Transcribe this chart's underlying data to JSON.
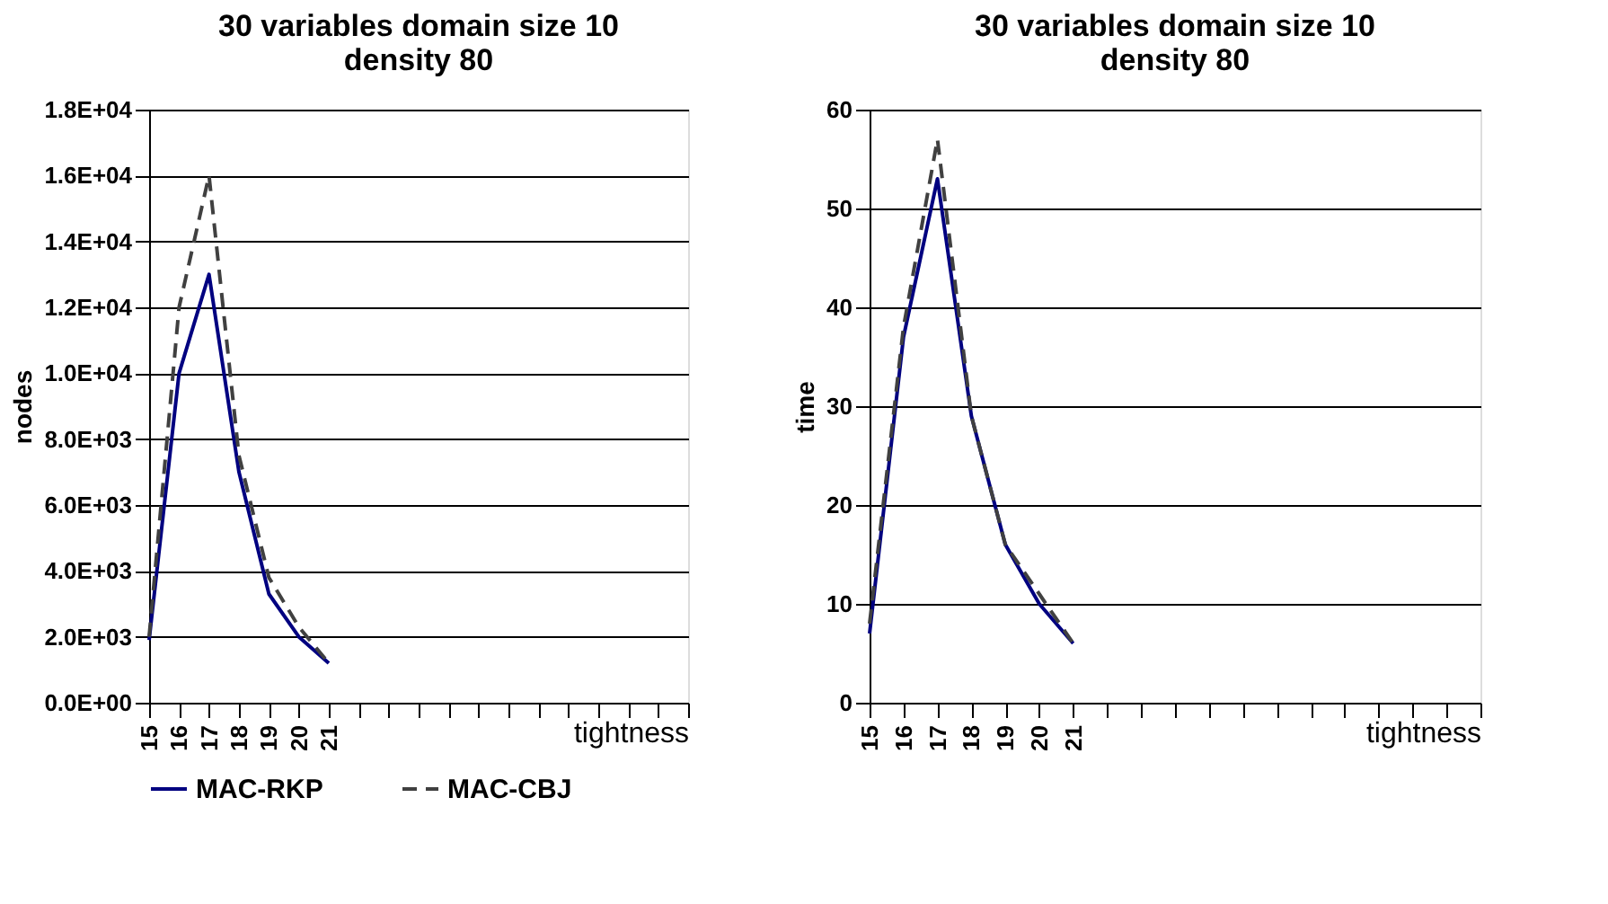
{
  "chart_data": [
    {
      "type": "line",
      "title": "30 variables    domain size 10\ndensity 80",
      "xlabel": "tightness",
      "ylabel": "nodes",
      "categories": [
        "15",
        "16",
        "17",
        "18",
        "19",
        "20",
        "21",
        null,
        null,
        null,
        null,
        null,
        null,
        null,
        null,
        null,
        null,
        null,
        null
      ],
      "series": [
        {
          "name": "MAC-RKP",
          "color": "#000080",
          "line_style": "solid",
          "values": [
            1900,
            10000,
            13000,
            7000,
            3300,
            2000,
            1200,
            null,
            null,
            null,
            null,
            null,
            null,
            null,
            null,
            null,
            null,
            null,
            null
          ]
        },
        {
          "name": "MAC-CBJ",
          "color": "#404040",
          "line_style": "dashed",
          "values": [
            2000,
            12000,
            16000,
            7500,
            3800,
            2300,
            1200,
            null,
            null,
            null,
            null,
            null,
            null,
            null,
            null,
            null,
            null,
            null,
            null
          ]
        }
      ],
      "ylim": [
        0,
        18000
      ],
      "yticks": [
        {
          "value": 0,
          "label": "0.0E+00"
        },
        {
          "value": 2000,
          "label": "2.0E+03"
        },
        {
          "value": 4000,
          "label": "4.0E+03"
        },
        {
          "value": 6000,
          "label": "6.0E+03"
        },
        {
          "value": 8000,
          "label": "8.0E+03"
        },
        {
          "value": 10000,
          "label": "1.0E+04"
        },
        {
          "value": 12000,
          "label": "1.2E+04"
        },
        {
          "value": 14000,
          "label": "1.4E+04"
        },
        {
          "value": 16000,
          "label": "1.6E+04"
        },
        {
          "value": 18000,
          "label": "1.8E+04"
        }
      ],
      "grid": "y",
      "legend": "bottom left",
      "marker": "none"
    },
    {
      "type": "line",
      "title": "30 variables    domain size 10\ndensity 80",
      "xlabel": "tightness",
      "ylabel": "time",
      "categories": [
        "15",
        "16",
        "17",
        "18",
        "19",
        "20",
        "21",
        null,
        null,
        null,
        null,
        null,
        null,
        null,
        null,
        null,
        null,
        null,
        null
      ],
      "series": [
        {
          "name": "MAC-RKP",
          "color": "#000080",
          "line_style": "solid",
          "values": [
            7,
            37,
            53,
            29,
            16,
            10,
            6,
            null,
            null,
            null,
            null,
            null,
            null,
            null,
            null,
            null,
            null,
            null,
            null
          ]
        },
        {
          "name": "MAC-CBJ",
          "color": "#404040",
          "line_style": "dashed",
          "values": [
            8,
            38,
            57,
            29,
            16,
            11,
            6,
            null,
            null,
            null,
            null,
            null,
            null,
            null,
            null,
            null,
            null,
            null,
            null
          ]
        }
      ],
      "ylim": [
        0,
        60
      ],
      "yticks": [
        0,
        10,
        20,
        30,
        40,
        50,
        60
      ],
      "grid": "y",
      "legend": "bottom left",
      "marker": "none"
    }
  ]
}
